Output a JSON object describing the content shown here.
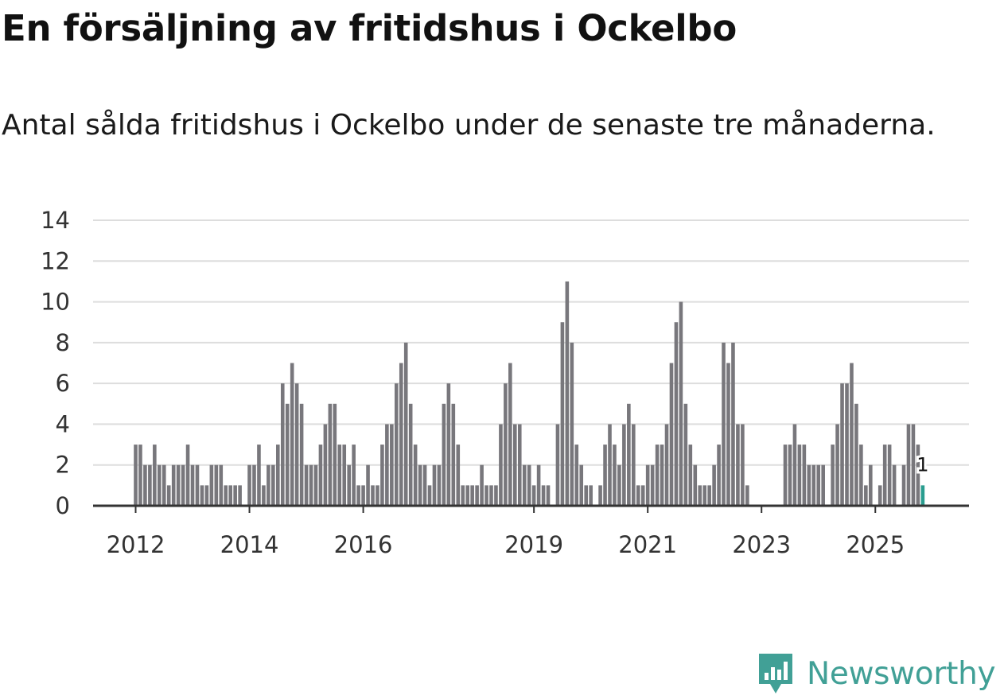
{
  "title": "En försäljning av fritidshus i Ockelbo",
  "subtitle": "Antal sålda fritidshus i Ockelbo under de senaste tre månaderna.",
  "brand": {
    "name": "Newsworthy",
    "color": "#41a096",
    "icon": "bar-chart-badge-icon"
  },
  "colors": {
    "bar": "#78777c",
    "highlight": "#2a9d8f",
    "grid": "#dddddd",
    "axis": "#333333"
  },
  "chart_data": {
    "type": "bar",
    "start": "2012-01",
    "frequency": "monthly",
    "ylim": [
      0,
      14
    ],
    "yticks": [
      "0",
      "2",
      "4",
      "6",
      "8",
      "10",
      "12",
      "14"
    ],
    "xticks": [
      {
        "label": "2012",
        "index": 0
      },
      {
        "label": "2014",
        "index": 24
      },
      {
        "label": "2016",
        "index": 48
      },
      {
        "label": "2019",
        "index": 84
      },
      {
        "label": "2021",
        "index": 108
      },
      {
        "label": "2023",
        "index": 132
      },
      {
        "label": "2025",
        "index": 156
      }
    ],
    "highlight_index": 166,
    "highlight_label": "1",
    "values": [
      3,
      3,
      2,
      2,
      3,
      2,
      2,
      1,
      2,
      2,
      2,
      3,
      2,
      2,
      1,
      1,
      2,
      2,
      2,
      1,
      1,
      1,
      1,
      0,
      2,
      2,
      3,
      1,
      2,
      2,
      3,
      6,
      5,
      7,
      6,
      5,
      2,
      2,
      2,
      3,
      4,
      5,
      5,
      3,
      3,
      2,
      3,
      1,
      1,
      2,
      1,
      1,
      3,
      4,
      4,
      6,
      7,
      8,
      5,
      3,
      2,
      2,
      1,
      2,
      2,
      5,
      6,
      5,
      3,
      1,
      1,
      1,
      1,
      2,
      1,
      1,
      1,
      4,
      6,
      7,
      4,
      4,
      2,
      2,
      1,
      2,
      1,
      1,
      0,
      4,
      9,
      11,
      8,
      3,
      2,
      1,
      1,
      0,
      1,
      3,
      4,
      3,
      2,
      4,
      5,
      4,
      1,
      1,
      2,
      2,
      3,
      3,
      4,
      7,
      9,
      10,
      5,
      3,
      2,
      1,
      1,
      1,
      2,
      3,
      8,
      7,
      8,
      4,
      4,
      1,
      0,
      0,
      0,
      0,
      0,
      0,
      0,
      3,
      3,
      4,
      3,
      3,
      2,
      2,
      2,
      2,
      0,
      3,
      4,
      6,
      6,
      7,
      5,
      3,
      1,
      2,
      0,
      1,
      3,
      3,
      2,
      0,
      2,
      4,
      4,
      3,
      1
    ]
  }
}
